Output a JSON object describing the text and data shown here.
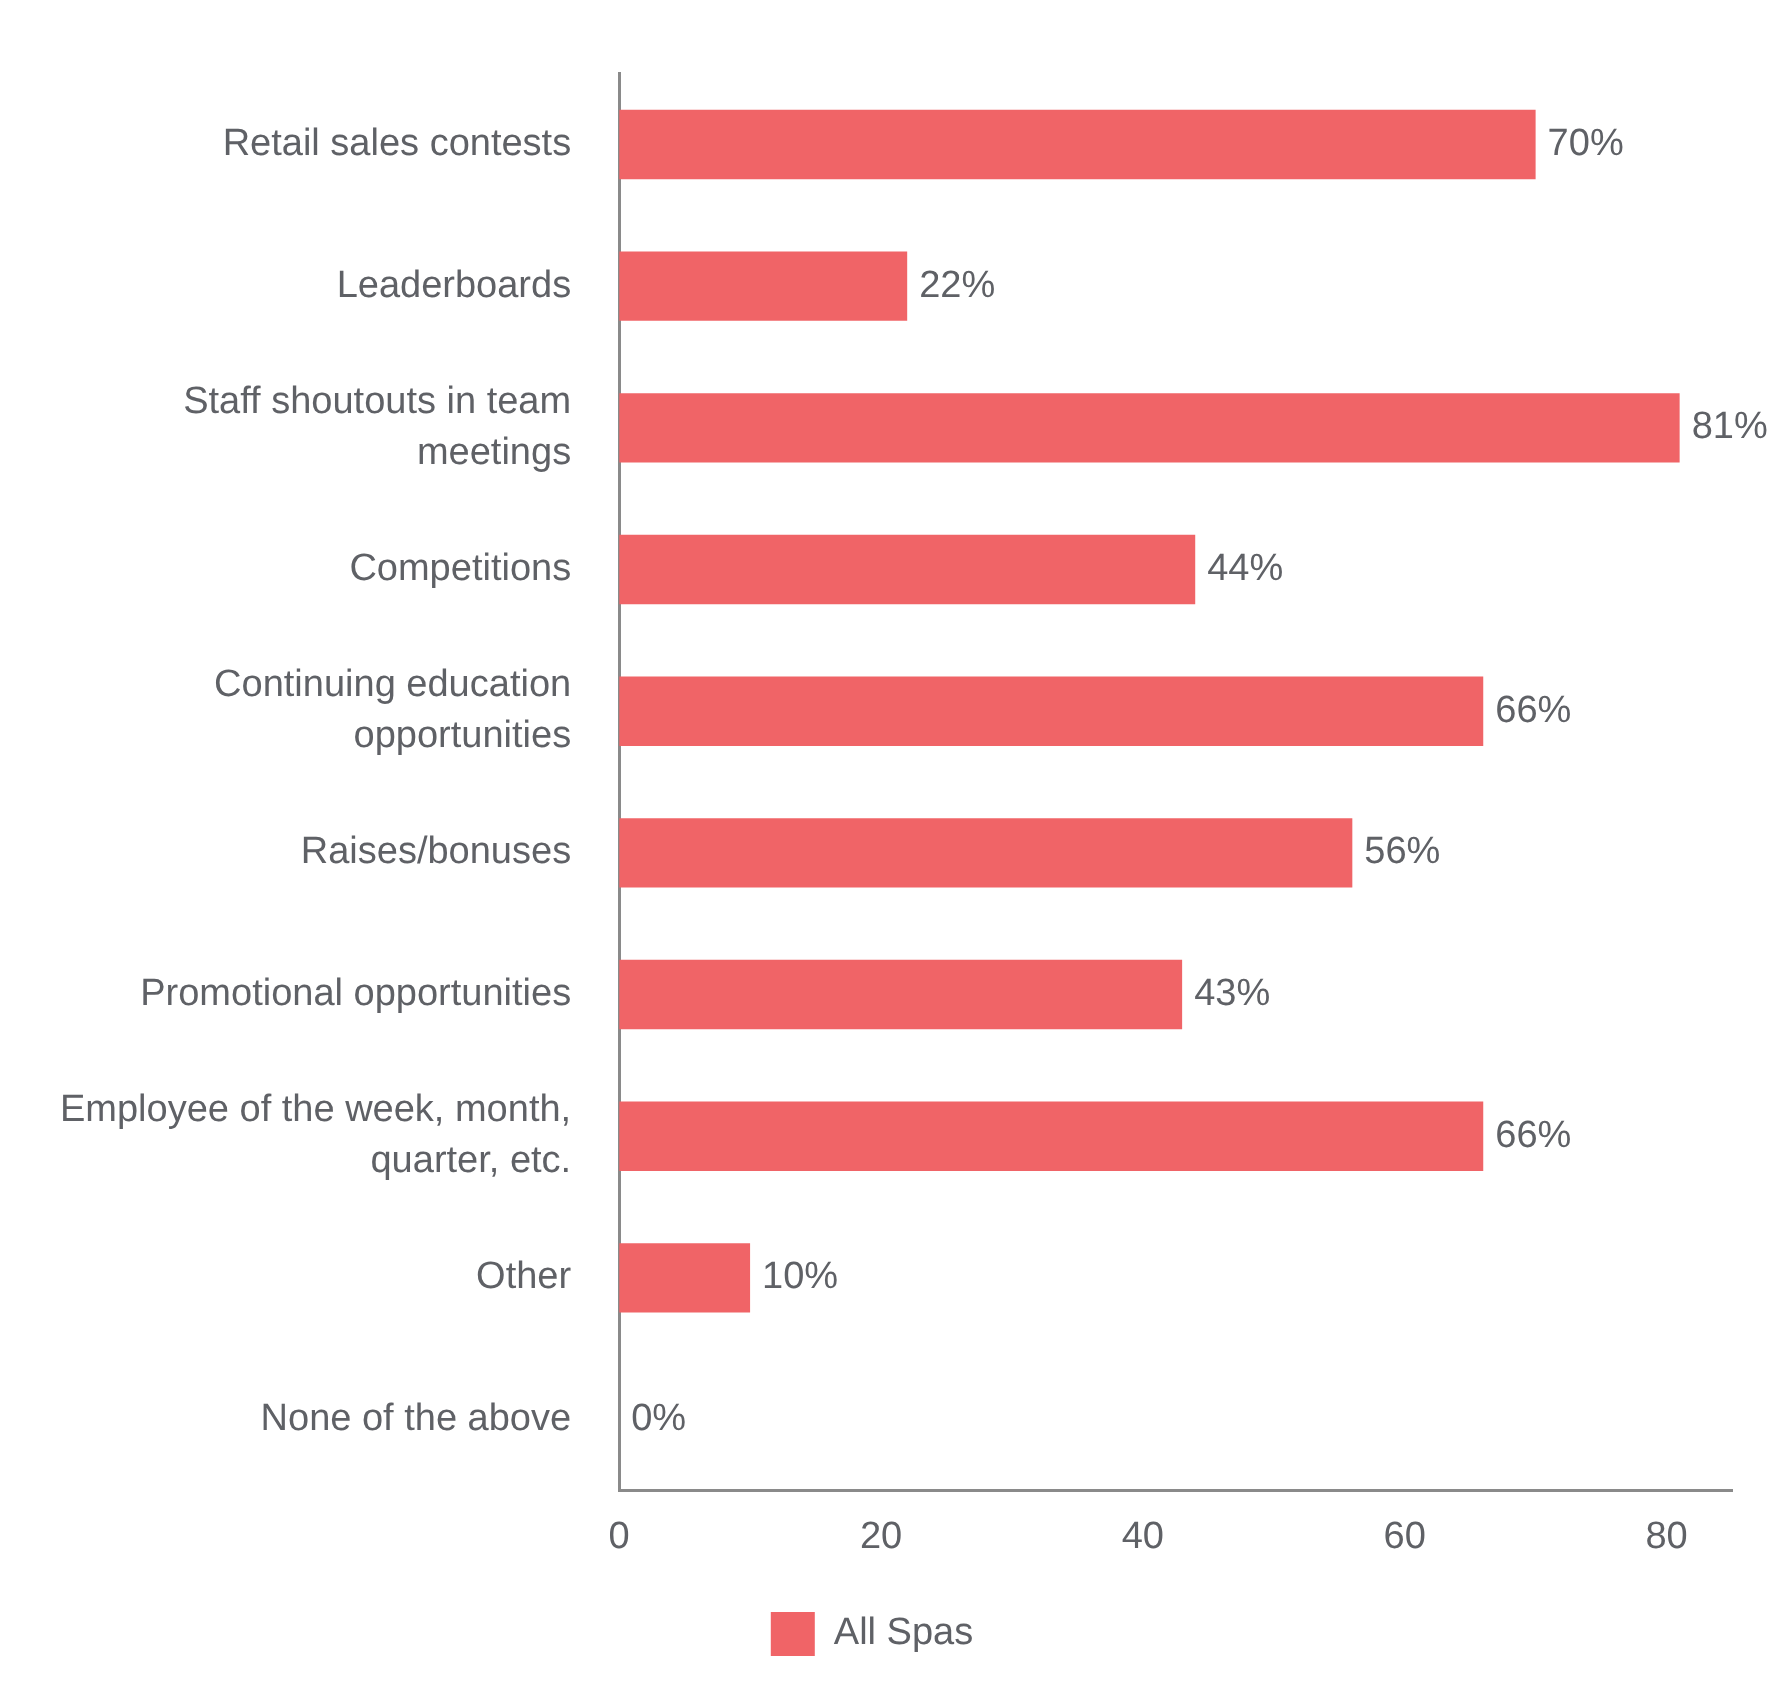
{
  "chart_data": {
    "type": "bar",
    "orientation": "horizontal",
    "categories": [
      "Retail sales contests",
      "Leaderboards",
      "Staff shoutouts in team meetings",
      "Competitions",
      "Continuing education opportunities",
      "Raises/bonuses",
      "Promotional opportunities",
      "Employee of the week, month, quarter, etc.",
      "Other",
      "None of the above"
    ],
    "series": [
      {
        "name": "All Spas",
        "color": "#f06467",
        "values": [
          70,
          22,
          81,
          44,
          66,
          56,
          43,
          66,
          10,
          0
        ],
        "value_labels": [
          "70%",
          "22%",
          "81%",
          "44%",
          "66%",
          "56%",
          "43%",
          "66%",
          "10%",
          "0%"
        ]
      }
    ],
    "xlim": [
      0,
      85
    ],
    "xticks": [
      0,
      20,
      40,
      60,
      80
    ],
    "grid": false,
    "legend": "bottom"
  }
}
